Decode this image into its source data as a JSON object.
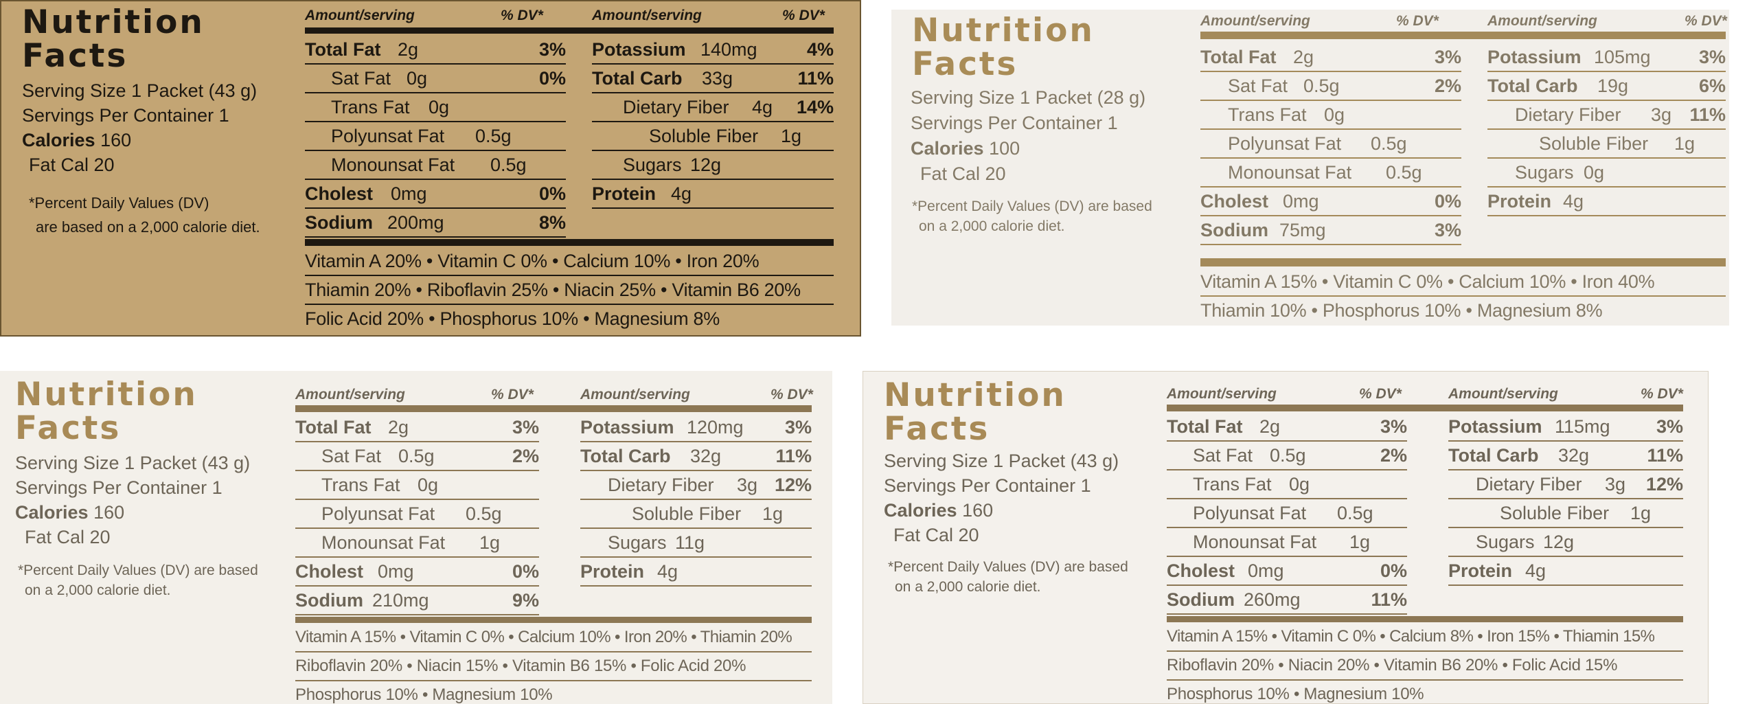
{
  "panels": [
    {
      "title": [
        "Nutrition",
        "Facts"
      ],
      "serving_size": "Serving Size 1 Packet (43 g)",
      "servings_per_container": "Servings Per Container 1",
      "calories": {
        "label": "Calories",
        "value": "160"
      },
      "fat_cal": "Fat Cal 20",
      "footnote": [
        "*Percent Daily Values (DV)",
        "are based on a 2,000 calorie diet."
      ],
      "header": {
        "amount": "Amount/serving",
        "dv": "% DV*"
      },
      "left_rows": [
        {
          "name": "Total Fat",
          "amount": "2g",
          "dv": "3%",
          "bold": true
        },
        {
          "name": "Sat Fat",
          "amount": "0g",
          "dv": "0%",
          "bold": false
        },
        {
          "name": "Trans Fat",
          "amount": "0g",
          "dv": "",
          "bold": false
        },
        {
          "name": "Polyunsat Fat",
          "amount": "0.5g",
          "dv": "",
          "bold": false
        },
        {
          "name": "Monounsat Fat",
          "amount": "0.5g",
          "dv": "",
          "bold": false
        },
        {
          "name": "Cholest",
          "amount": "0mg",
          "dv": "0%",
          "bold": true
        },
        {
          "name": "Sodium",
          "amount": "200mg",
          "dv": "8%",
          "bold": true
        }
      ],
      "right_rows": [
        {
          "name": "Potassium",
          "amount": "140mg",
          "dv": "4%",
          "bold": true
        },
        {
          "name": "Total Carb",
          "amount": "33g",
          "dv": "11%",
          "bold": true
        },
        {
          "name": "Dietary Fiber",
          "amount": "4g",
          "dv": "14%",
          "bold": false
        },
        {
          "name": "Soluble Fiber",
          "amount": "1g",
          "dv": "",
          "bold": false
        },
        {
          "name": "Sugars",
          "amount": "12g",
          "dv": "",
          "bold": false
        },
        {
          "name": "Protein",
          "amount": "4g",
          "dv": "",
          "bold": true
        }
      ],
      "vitamins": [
        "Vitamin A 20% • Vitamin C 0% • Calcium 10% • Iron 20%",
        "Thiamin 20% • Riboflavin 25% • Niacin 25% • Vitamin B6 20%",
        "Folic Acid 20% • Phosphorus 10% • Magnesium 8%"
      ]
    },
    {
      "title": [
        "Nutrition",
        "Facts"
      ],
      "serving_size": "Serving Size 1 Packet (28 g)",
      "servings_per_container": "Servings Per Container 1",
      "calories": {
        "label": "Calories",
        "value": "100"
      },
      "fat_cal": "Fat Cal 20",
      "footnote": [
        "*Percent Daily Values (DV) are based",
        "on a 2,000 calorie diet."
      ],
      "header": {
        "amount": "Amount/serving",
        "dv": "% DV*"
      },
      "left_rows": [
        {
          "name": "Total Fat",
          "amount": "2g",
          "dv": "3%",
          "bold": true
        },
        {
          "name": "Sat Fat",
          "amount": "0.5g",
          "dv": "2%",
          "bold": false
        },
        {
          "name": "Trans Fat",
          "amount": "0g",
          "dv": "",
          "bold": false
        },
        {
          "name": "Polyunsat Fat",
          "amount": "0.5g",
          "dv": "",
          "bold": false
        },
        {
          "name": "Monounsat Fat",
          "amount": "0.5g",
          "dv": "",
          "bold": false
        },
        {
          "name": "Cholest",
          "amount": "0mg",
          "dv": "0%",
          "bold": true
        },
        {
          "name": "Sodium",
          "amount": "75mg",
          "dv": "3%",
          "bold": true
        }
      ],
      "right_rows": [
        {
          "name": "Potassium",
          "amount": "105mg",
          "dv": "3%",
          "bold": true
        },
        {
          "name": "Total Carb",
          "amount": "19g",
          "dv": "6%",
          "bold": true
        },
        {
          "name": "Dietary Fiber",
          "amount": "3g",
          "dv": "11%",
          "bold": false
        },
        {
          "name": "Soluble Fiber",
          "amount": "1g",
          "dv": "",
          "bold": false
        },
        {
          "name": "Sugars",
          "amount": "0g",
          "dv": "",
          "bold": false
        },
        {
          "name": "Protein",
          "amount": "4g",
          "dv": "",
          "bold": true
        }
      ],
      "vitamins": [
        "Vitamin A 15% • Vitamin C 0% • Calcium 10% • Iron 40%",
        "Thiamin 10% • Phosphorus 10% • Magnesium 8%"
      ]
    },
    {
      "title": [
        "Nutrition",
        "Facts"
      ],
      "serving_size": "Serving Size 1 Packet (43 g)",
      "servings_per_container": "Servings Per Container 1",
      "calories": {
        "label": "Calories",
        "value": "160"
      },
      "fat_cal": "Fat Cal 20",
      "footnote": [
        "*Percent Daily Values (DV) are based",
        "on a 2,000 calorie diet."
      ],
      "header": {
        "amount": "Amount/serving",
        "dv": "% DV*"
      },
      "left_rows": [
        {
          "name": "Total Fat",
          "amount": "2g",
          "dv": "3%",
          "bold": true
        },
        {
          "name": "Sat Fat",
          "amount": "0.5g",
          "dv": "2%",
          "bold": false
        },
        {
          "name": "Trans Fat",
          "amount": "0g",
          "dv": "",
          "bold": false
        },
        {
          "name": "Polyunsat Fat",
          "amount": "0.5g",
          "dv": "",
          "bold": false
        },
        {
          "name": "Monounsat Fat",
          "amount": "1g",
          "dv": "",
          "bold": false
        },
        {
          "name": "Cholest",
          "amount": "0mg",
          "dv": "0%",
          "bold": true
        },
        {
          "name": "Sodium",
          "amount": "210mg",
          "dv": "9%",
          "bold": true
        }
      ],
      "right_rows": [
        {
          "name": "Potassium",
          "amount": "120mg",
          "dv": "3%",
          "bold": true
        },
        {
          "name": "Total Carb",
          "amount": "32g",
          "dv": "11%",
          "bold": true
        },
        {
          "name": "Dietary Fiber",
          "amount": "3g",
          "dv": "12%",
          "bold": false
        },
        {
          "name": "Soluble Fiber",
          "amount": "1g",
          "dv": "",
          "bold": false
        },
        {
          "name": "Sugars",
          "amount": "11g",
          "dv": "",
          "bold": false
        },
        {
          "name": "Protein",
          "amount": "4g",
          "dv": "",
          "bold": true
        }
      ],
      "vitamins": [
        "Vitamin A 15% • Vitamin C 0% • Calcium 10% • Iron 20% • Thiamin 20%",
        "Riboflavin 20% • Niacin 15% • Vitamin B6 15% • Folic Acid 20%",
        "Phosphorus 10% • Magnesium 10%"
      ]
    },
    {
      "title": [
        "Nutrition",
        "Facts"
      ],
      "serving_size": "Serving Size 1 Packet (43 g)",
      "servings_per_container": "Servings Per Container 1",
      "calories": {
        "label": "Calories",
        "value": "160"
      },
      "fat_cal": "Fat Cal 20",
      "footnote": [
        "*Percent Daily Values (DV) are based",
        "on a 2,000 calorie diet."
      ],
      "header": {
        "amount": "Amount/serving",
        "dv": "% DV*"
      },
      "left_rows": [
        {
          "name": "Total Fat",
          "amount": "2g",
          "dv": "3%",
          "bold": true
        },
        {
          "name": "Sat Fat",
          "amount": "0.5g",
          "dv": "2%",
          "bold": false
        },
        {
          "name": "Trans Fat",
          "amount": "0g",
          "dv": "",
          "bold": false
        },
        {
          "name": "Polyunsat Fat",
          "amount": "0.5g",
          "dv": "",
          "bold": false
        },
        {
          "name": "Monounsat Fat",
          "amount": "1g",
          "dv": "",
          "bold": false
        },
        {
          "name": "Cholest",
          "amount": "0mg",
          "dv": "0%",
          "bold": true
        },
        {
          "name": "Sodium",
          "amount": "260mg",
          "dv": "11%",
          "bold": true
        }
      ],
      "right_rows": [
        {
          "name": "Potassium",
          "amount": "115mg",
          "dv": "3%",
          "bold": true
        },
        {
          "name": "Total Carb",
          "amount": "32g",
          "dv": "11%",
          "bold": true
        },
        {
          "name": "Dietary Fiber",
          "amount": "3g",
          "dv": "12%",
          "bold": false
        },
        {
          "name": "Soluble Fiber",
          "amount": "1g",
          "dv": "",
          "bold": false
        },
        {
          "name": "Sugars",
          "amount": "12g",
          "dv": "",
          "bold": false
        },
        {
          "name": "Protein",
          "amount": "4g",
          "dv": "",
          "bold": true
        }
      ],
      "vitamins": [
        "Vitamin A 15% • Vitamin C 0% • Calcium 8% • Iron 15% • Thiamin 15%",
        "Riboflavin 20% • Niacin 20% • Vitamin B6 20% • Folic Acid 15%",
        "Phosphorus 10% • Magnesium 10%"
      ]
    }
  ]
}
